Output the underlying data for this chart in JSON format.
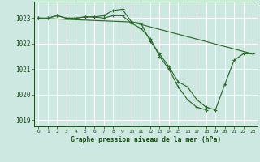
{
  "background_color": "#cce8e0",
  "plot_bg_color": "#cce8e0",
  "grid_color": "#aad4cc",
  "line_color": "#2d6a2d",
  "marker_color": "#2d6a2d",
  "xlabel": "Graphe pression niveau de la mer (hPa)",
  "xlabel_color": "#1a4a1a",
  "tick_color": "#1a4a1a",
  "ylim": [
    1018.75,
    1023.65
  ],
  "xlim": [
    -0.5,
    23.5
  ],
  "yticks": [
    1019,
    1020,
    1021,
    1022,
    1023
  ],
  "xticks": [
    0,
    1,
    2,
    3,
    4,
    5,
    6,
    7,
    8,
    9,
    10,
    11,
    12,
    13,
    14,
    15,
    16,
    17,
    18,
    19,
    20,
    21,
    22,
    23
  ],
  "line1_x": [
    0,
    1,
    2,
    3,
    4,
    5,
    6,
    7,
    8,
    9,
    10,
    11,
    12,
    13,
    14,
    15,
    16,
    17,
    18,
    19,
    20,
    21,
    22,
    23
  ],
  "line1_y": [
    1023.0,
    1023.0,
    1023.1,
    1023.0,
    1023.0,
    1023.05,
    1023.05,
    1023.1,
    1023.3,
    1023.35,
    1022.85,
    1022.8,
    1022.1,
    1021.6,
    1021.1,
    1020.5,
    1020.3,
    1019.8,
    1019.5,
    1019.4,
    1020.4,
    1021.35,
    1021.6,
    1021.6
  ],
  "line2_x": [
    0,
    1,
    2,
    3,
    4,
    5,
    6,
    7,
    8,
    9,
    10,
    11,
    12,
    13,
    14,
    15,
    16,
    17,
    18
  ],
  "line2_y": [
    1023.0,
    1023.0,
    1023.1,
    1023.0,
    1023.0,
    1023.05,
    1023.05,
    1023.0,
    1023.1,
    1023.1,
    1022.8,
    1022.6,
    1022.2,
    1021.5,
    1021.0,
    1020.3,
    1019.8,
    1019.5,
    1019.4
  ],
  "line3_x": [
    0,
    10,
    23
  ],
  "line3_y": [
    1023.0,
    1022.85,
    1021.6
  ]
}
